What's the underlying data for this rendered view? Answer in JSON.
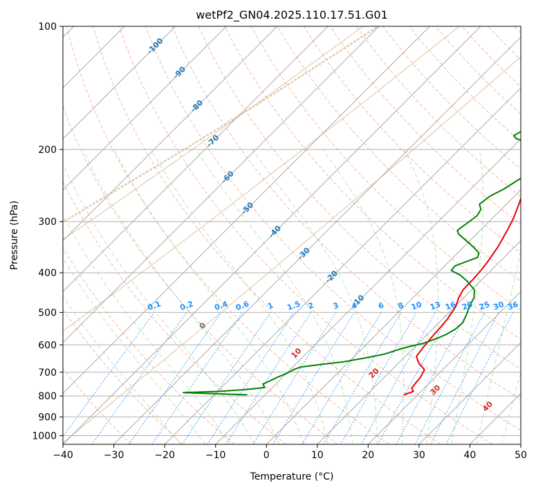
{
  "chart_data": {
    "type": "line",
    "title": "wetPf2_GN04.2025.110.17.51.G01",
    "xlabel": "Temperature (°C)",
    "ylabel": "Pressure (hPa)",
    "xlim": [
      -40,
      50
    ],
    "ylim": [
      1050,
      100
    ],
    "y_scale": "log",
    "grid": true,
    "x_ticks": [
      -40,
      -30,
      -20,
      -10,
      0,
      10,
      20,
      30,
      40,
      50
    ],
    "y_ticks": [
      1000,
      900,
      800,
      700,
      600,
      500,
      400,
      300,
      200,
      100
    ],
    "series": [
      {
        "color": "#e8000b",
        "style": "solid",
        "points": [
          [
            17.3,
            795
          ],
          [
            18.5,
            780
          ],
          [
            17.5,
            765
          ],
          [
            17.3,
            745
          ],
          [
            17.1,
            720
          ],
          [
            16.4,
            690
          ],
          [
            14.0,
            665
          ],
          [
            12.2,
            640
          ],
          [
            11.8,
            610
          ],
          [
            11.5,
            580
          ],
          [
            11.2,
            545
          ],
          [
            11.0,
            520
          ],
          [
            10.2,
            485
          ],
          [
            9.0,
            460
          ],
          [
            8.3,
            440
          ],
          [
            8.2,
            415
          ],
          [
            8.0,
            395
          ],
          [
            7.6,
            375
          ],
          [
            6.7,
            345
          ],
          [
            5.3,
            315
          ],
          [
            4.2,
            295
          ],
          [
            2.3,
            270
          ],
          [
            0.5,
            250
          ],
          [
            -1.0,
            232
          ],
          [
            -2.2,
            215
          ],
          [
            -2.5,
            202
          ],
          [
            -1.5,
            197
          ],
          [
            0.8,
            192
          ],
          [
            3.0,
            187
          ],
          [
            4.8,
            182
          ],
          [
            5.6,
            177
          ],
          [
            6.0,
            170
          ],
          [
            6.5,
            160
          ],
          [
            7.2,
            150
          ],
          [
            8.3,
            140
          ],
          [
            9.6,
            132
          ],
          [
            11.0,
            124
          ],
          [
            12.5,
            116
          ],
          [
            13.5,
            110
          ],
          [
            14.5,
            104
          ],
          [
            15.3,
            100
          ]
        ]
      },
      {
        "color": "#008000",
        "style": "solid",
        "points": [
          [
            -13.5,
            795
          ],
          [
            -20.0,
            790
          ],
          [
            -26.5,
            785
          ],
          [
            -20.0,
            780
          ],
          [
            -15.0,
            772
          ],
          [
            -11.5,
            763
          ],
          [
            -12.5,
            748
          ],
          [
            -11.8,
            735
          ],
          [
            -11.0,
            720
          ],
          [
            -10.0,
            705
          ],
          [
            -9.2,
            688
          ],
          [
            -8.5,
            680
          ],
          [
            -5.0,
            670
          ],
          [
            -1.0,
            660
          ],
          [
            2.0,
            648
          ],
          [
            5.5,
            632
          ],
          [
            7.5,
            615
          ],
          [
            9.0,
            605
          ],
          [
            11.0,
            595
          ],
          [
            12.8,
            578
          ],
          [
            13.8,
            565
          ],
          [
            14.5,
            550
          ],
          [
            14.7,
            530
          ],
          [
            13.8,
            505
          ],
          [
            12.6,
            478
          ],
          [
            12.0,
            460
          ],
          [
            10.5,
            440
          ],
          [
            7.5,
            420
          ],
          [
            4.8,
            405
          ],
          [
            2.2,
            395
          ],
          [
            2.0,
            385
          ],
          [
            3.5,
            375
          ],
          [
            4.8,
            367
          ],
          [
            4.2,
            358
          ],
          [
            2.3,
            348
          ],
          [
            -0.5,
            335
          ],
          [
            -3.5,
            322
          ],
          [
            -4.5,
            315
          ],
          [
            -4.0,
            303
          ],
          [
            -3.5,
            290
          ],
          [
            -4.0,
            280
          ],
          [
            -5.3,
            272
          ],
          [
            -4.8,
            260
          ],
          [
            -3.5,
            250
          ],
          [
            -2.0,
            232
          ],
          [
            -1.5,
            220
          ],
          [
            -2.0,
            212
          ],
          [
            -3.0,
            205
          ],
          [
            -5.0,
            196
          ],
          [
            -8.0,
            192
          ],
          [
            -11.0,
            188
          ],
          [
            -12.0,
            185
          ],
          [
            -11.0,
            178
          ],
          [
            -10.0,
            170
          ],
          [
            -9.6,
            160
          ],
          [
            -9.2,
            150
          ],
          [
            -8.5,
            140
          ],
          [
            -7.5,
            130
          ],
          [
            -6.0,
            122
          ],
          [
            -4.0,
            114
          ],
          [
            -2.0,
            108
          ],
          [
            -0.5,
            103
          ],
          [
            0.5,
            100
          ]
        ]
      }
    ],
    "dry_adiabat_labels": [
      "-100",
      "-90",
      "-80",
      "-70",
      "-60",
      "-50",
      "-40",
      "-30",
      "-20",
      "-10"
    ],
    "dry_adiabat_label_values": [
      -100,
      -90,
      -80,
      -70,
      -60,
      -50,
      -40,
      -30,
      -20,
      -10
    ],
    "moist_adiabat_labels": [
      "0",
      "10",
      "20",
      "30",
      "40"
    ],
    "moist_adiabat_label_values": [
      0,
      10,
      20,
      30,
      40
    ],
    "mixing_ratio_labels": [
      "0.1",
      "0.2",
      "0.4",
      "0.6",
      "1",
      "1.5",
      "2",
      "3",
      "4",
      "6",
      "8",
      "10",
      "13",
      "16",
      "20",
      "25",
      "30",
      "36"
    ],
    "mixing_ratio_values": [
      0.1,
      0.2,
      0.4,
      0.6,
      1,
      1.5,
      2,
      3,
      4,
      6,
      8,
      10,
      13,
      16,
      20,
      25,
      30,
      36
    ],
    "colors": {
      "temperature": "#e8000b",
      "dewpoint": "#008000",
      "dry_adiabat_label": "#1f77b4",
      "moist_adiabat_label": "#d62728",
      "zero_moist_label": "#666666",
      "mixing_ratio": "#1e90ff",
      "grid": "#b0b0b0"
    }
  }
}
